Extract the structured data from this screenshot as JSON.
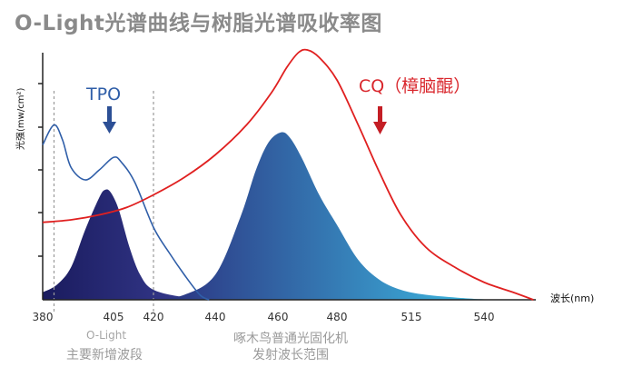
{
  "title": "O-Light光谱曲线与树脂光谱吸收率图",
  "chart_data": {
    "type": "line",
    "ylabel": "光强(mw/cm²)",
    "xlabel": "波长(nm)",
    "x_ticks": [
      380,
      405,
      420,
      440,
      460,
      480,
      515,
      540
    ],
    "series": [
      {
        "name": "TPO",
        "color": "#2f5ea8",
        "points": [
          [
            380,
            0.62
          ],
          [
            384,
            0.7
          ],
          [
            387,
            0.64
          ],
          [
            390,
            0.53
          ],
          [
            395,
            0.48
          ],
          [
            400,
            0.52
          ],
          [
            405,
            0.57
          ],
          [
            408,
            0.55
          ],
          [
            413,
            0.47
          ],
          [
            420,
            0.29
          ],
          [
            425,
            0.19
          ],
          [
            430,
            0.1
          ],
          [
            435,
            0.02
          ],
          [
            438,
            0
          ]
        ]
      },
      {
        "name": "CQ（樟脑醌）",
        "color": "#e02020",
        "points": [
          [
            380,
            0.31
          ],
          [
            390,
            0.32
          ],
          [
            400,
            0.34
          ],
          [
            410,
            0.37
          ],
          [
            420,
            0.42
          ],
          [
            430,
            0.49
          ],
          [
            440,
            0.58
          ],
          [
            450,
            0.7
          ],
          [
            458,
            0.83
          ],
          [
            463,
            0.93
          ],
          [
            467,
            0.99
          ],
          [
            470,
            1.0
          ],
          [
            474,
            0.97
          ],
          [
            480,
            0.88
          ],
          [
            490,
            0.7
          ],
          [
            500,
            0.51
          ],
          [
            510,
            0.34
          ],
          [
            520,
            0.21
          ],
          [
            530,
            0.13
          ],
          [
            540,
            0.07
          ],
          [
            550,
            0.03
          ],
          [
            557,
            0
          ]
        ]
      }
    ],
    "fills": [
      {
        "name": "O-Light",
        "color_start": "#1a1b5e",
        "color_end": "#3a3f95",
        "points": [
          [
            380,
            0.03
          ],
          [
            385,
            0.06
          ],
          [
            390,
            0.13
          ],
          [
            395,
            0.28
          ],
          [
            400,
            0.41
          ],
          [
            402,
            0.44
          ],
          [
            404,
            0.43
          ],
          [
            407,
            0.36
          ],
          [
            411,
            0.21
          ],
          [
            415,
            0.1
          ],
          [
            420,
            0.04
          ],
          [
            430,
            0.01
          ],
          [
            440,
            0
          ]
        ]
      },
      {
        "name": "啄木鸟普通光固化机",
        "color_start": "#2b2f7e",
        "color_end": "#3ec0e6",
        "points": [
          [
            420,
            0
          ],
          [
            430,
            0.02
          ],
          [
            440,
            0.1
          ],
          [
            448,
            0.33
          ],
          [
            453,
            0.52
          ],
          [
            457,
            0.63
          ],
          [
            461,
            0.67
          ],
          [
            464,
            0.65
          ],
          [
            468,
            0.57
          ],
          [
            474,
            0.42
          ],
          [
            480,
            0.3
          ],
          [
            490,
            0.16
          ],
          [
            500,
            0.08
          ],
          [
            510,
            0.04
          ],
          [
            520,
            0.02
          ],
          [
            535,
            0.005
          ],
          [
            545,
            0
          ]
        ]
      }
    ],
    "dashed_x": [
      384,
      420
    ],
    "annotations": [
      {
        "text": "TPO",
        "color": "#2f5ea8"
      },
      {
        "text": "CQ（樟脑醌）",
        "color": "#d9262c"
      }
    ]
  },
  "band_labels": {
    "olight_name": "O-Light",
    "olight_desc": "主要新增波段",
    "machine_line1": "啄木鸟普通光固化机",
    "machine_line2": "发射波长范围"
  }
}
